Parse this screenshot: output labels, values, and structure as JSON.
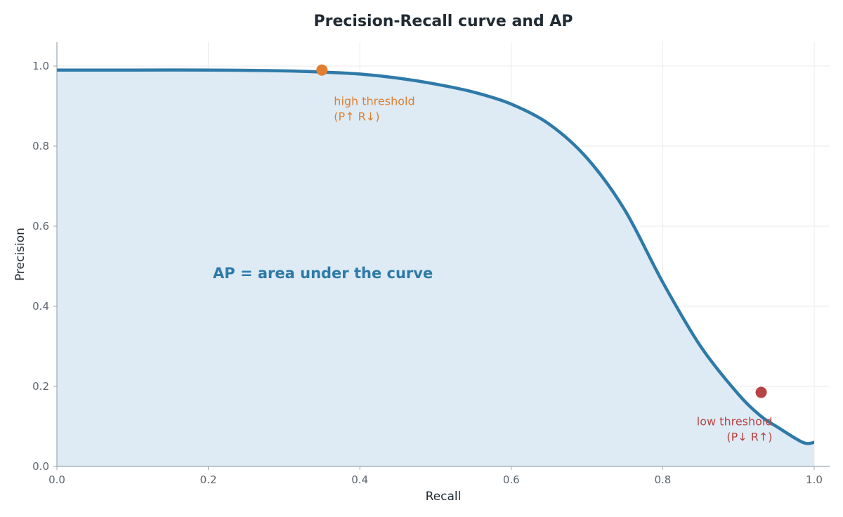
{
  "chart_data": {
    "type": "area",
    "title": "Precision-Recall curve and AP",
    "xlabel": "Recall",
    "ylabel": "Precision",
    "xlim": [
      0.0,
      1.02
    ],
    "ylim": [
      0.0,
      1.06
    ],
    "xticks": [
      0.0,
      0.2,
      0.4,
      0.6,
      0.8,
      1.0
    ],
    "yticks": [
      0.0,
      0.2,
      0.4,
      0.6,
      0.8,
      1.0
    ],
    "xtick_labels": [
      "0.0",
      "0.2",
      "0.4",
      "0.6",
      "0.8",
      "1.0"
    ],
    "ytick_labels": [
      "0.0",
      "0.2",
      "0.4",
      "0.6",
      "0.8",
      "1.0"
    ],
    "grid": true,
    "series": [
      {
        "x": [
          0.0,
          0.1,
          0.2,
          0.3,
          0.35,
          0.4,
          0.45,
          0.5,
          0.55,
          0.6,
          0.65,
          0.7,
          0.75,
          0.8,
          0.85,
          0.9,
          0.93,
          0.95,
          0.985,
          1.0
        ],
        "y": [
          0.99,
          0.99,
          0.99,
          0.988,
          0.985,
          0.98,
          0.97,
          0.955,
          0.935,
          0.905,
          0.855,
          0.77,
          0.64,
          0.46,
          0.3,
          0.18,
          0.125,
          0.1,
          0.06,
          0.06
        ]
      }
    ],
    "points": [
      {
        "x": 0.35,
        "y": 0.99,
        "color": "#e07f2f",
        "label_lines": [
          "high threshold",
          "(P↑ R↓)"
        ]
      },
      {
        "x": 0.93,
        "y": 0.185,
        "color": "#b74444",
        "label_lines": [
          "low threshold",
          "(P↓ R↑)"
        ]
      }
    ],
    "area_label": "AP = area under the curve",
    "colors": {
      "curve": "#2e7aa8",
      "fill": "#deebf5",
      "high_threshold": "#e07f2f",
      "low_threshold": "#b74444",
      "ap_label": "#2e7aa8",
      "grid": "#ebebeb",
      "axis": "#9aa9b2"
    }
  }
}
